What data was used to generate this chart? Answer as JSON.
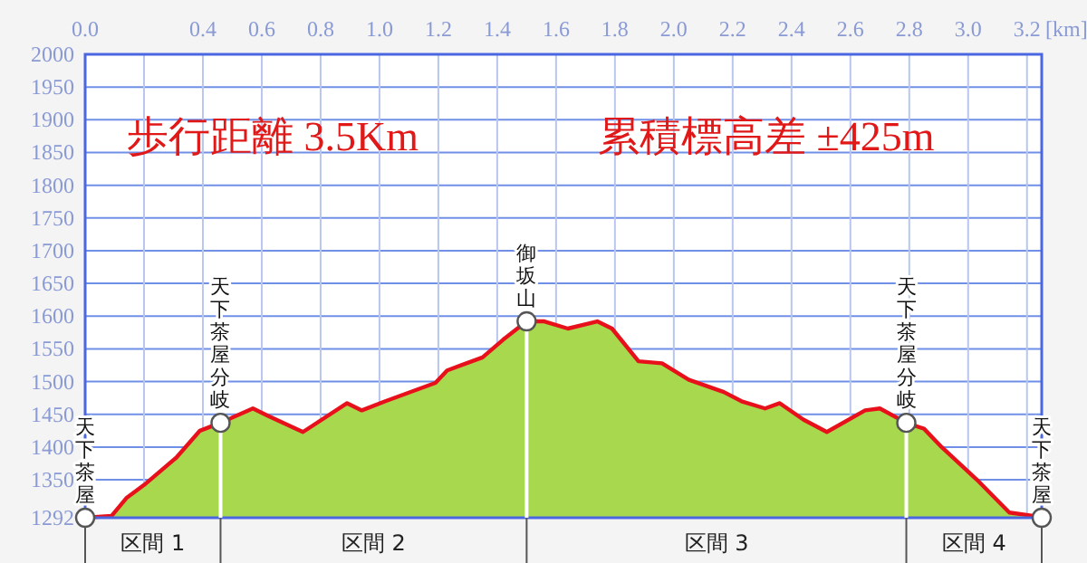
{
  "chart_data": {
    "type": "area",
    "xlabel": "[km]",
    "x": [
      0,
      0.09,
      0.14,
      0.2,
      0.31,
      0.39,
      0.46,
      0.57,
      0.62,
      0.74,
      0.89,
      0.94,
      1.02,
      1.19,
      1.23,
      1.35,
      1.42,
      1.5,
      1.56,
      1.64,
      1.74,
      1.79,
      1.88,
      1.96,
      2.05,
      2.17,
      2.23,
      2.31,
      2.36,
      2.44,
      2.52,
      2.65,
      2.7,
      2.79,
      2.85,
      2.91,
      3.03,
      3.14,
      3.22,
      3.25
    ],
    "series": [
      {
        "color": "#a8d84e",
        "values": [
          1292,
          1295,
          1322,
          1342,
          1384,
          1425,
          1437,
          1459,
          1448,
          1423,
          1467,
          1456,
          1470,
          1498,
          1517,
          1537,
          1564,
          1592,
          1592,
          1581,
          1592,
          1581,
          1531,
          1528,
          1503,
          1484,
          1470,
          1459,
          1467,
          1442,
          1423,
          1456,
          1459,
          1437,
          1428,
          1400,
          1350,
          1300,
          1295,
          1292
        ]
      }
    ],
    "xlim": [
      0,
      3.25
    ],
    "xticks": [
      {
        "value": 0,
        "label": "0.0"
      },
      {
        "value": 0.2,
        "label": null
      },
      {
        "value": 0.4,
        "label": "0.4"
      },
      {
        "value": 0.6,
        "label": "0.6"
      },
      {
        "value": 0.8,
        "label": "0.8"
      },
      {
        "value": 1.0,
        "label": "1.0"
      },
      {
        "value": 1.2,
        "label": "1.2"
      },
      {
        "value": 1.4,
        "label": "1.4"
      },
      {
        "value": 1.6,
        "label": "1.6"
      },
      {
        "value": 1.8,
        "label": "1.8"
      },
      {
        "value": 2.0,
        "label": "2.0"
      },
      {
        "value": 2.2,
        "label": "2.2"
      },
      {
        "value": 2.4,
        "label": "2.4"
      },
      {
        "value": 2.6,
        "label": "2.6"
      },
      {
        "value": 2.8,
        "label": "2.8"
      },
      {
        "value": 3.0,
        "label": "3.0"
      },
      {
        "value": 3.2,
        "label": "3.2"
      }
    ],
    "ylim": [
      1292,
      2000
    ],
    "yticks": [
      1292,
      1350,
      1400,
      1450,
      1500,
      1550,
      1600,
      1650,
      1700,
      1750,
      1800,
      1850,
      1900,
      1950,
      2000
    ],
    "grid": true,
    "annotations": [
      "歩行距離 3.5Km",
      "累積標高差 ±425m",
      {
        "text": "天下茶屋",
        "x": 0,
        "y": 1292
      },
      {
        "text": "天下茶屋分岐",
        "x": 0.46,
        "y": 1437
      },
      {
        "text": "御坂山",
        "x": 1.5,
        "y": 1592
      },
      {
        "text": "天下茶屋分岐",
        "x": 2.79,
        "y": 1437
      },
      {
        "text": "天下茶屋",
        "x": 3.25,
        "y": 1292
      },
      "区間 1",
      "区間 2",
      "区間 3",
      "区間 4"
    ]
  }
}
